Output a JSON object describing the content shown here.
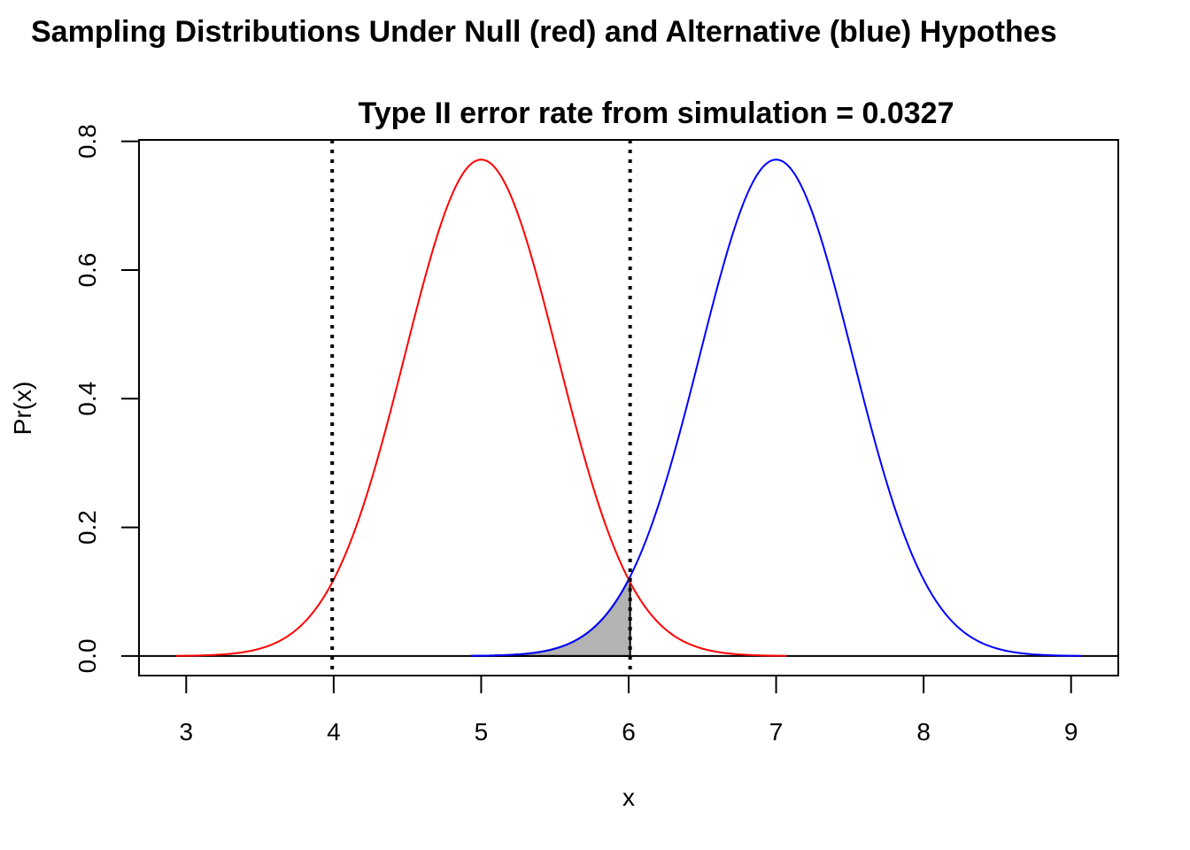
{
  "chart_data": {
    "type": "line",
    "title": "Sampling Distributions Under Null (red) and Alternative (blue) Hypothes",
    "subtitle": "Type II error rate from simulation = 0.0327",
    "xlabel": "x",
    "ylabel": "Pr(x)",
    "xlim": [
      2.68,
      9.32
    ],
    "ylim": [
      -0.0304,
      0.8023
    ],
    "x_ticks": [
      3,
      4,
      5,
      6,
      7,
      8,
      9
    ],
    "x_tick_labels": [
      "3",
      "4",
      "5",
      "6",
      "7",
      "8",
      "9"
    ],
    "y_ticks": [
      0.0,
      0.2,
      0.4,
      0.6,
      0.8
    ],
    "y_tick_labels": [
      "0.0",
      "0.2",
      "0.4",
      "0.6",
      "0.8"
    ],
    "grid": false,
    "legend": "none",
    "series": [
      {
        "color": "#ff0000",
        "distribution": "normal",
        "mean": 5,
        "sd": 0.517,
        "x_range": [
          2.93,
          7.07
        ]
      },
      {
        "color": "#0000ff",
        "distribution": "normal",
        "mean": 7,
        "sd": 0.517,
        "x_range": [
          4.93,
          9.07
        ]
      }
    ],
    "shaded_region": {
      "under_series": 1,
      "from": 4.93,
      "to": 6.01,
      "fill": "#b3b3b3",
      "edge": "#000000"
    },
    "vertical_lines": [
      {
        "x": 3.99,
        "style": "dotted",
        "color": "#000000"
      },
      {
        "x": 6.01,
        "style": "dotted",
        "color": "#000000"
      }
    ],
    "horizontal_lines": [
      {
        "y": 0,
        "style": "solid",
        "color": "#000000"
      }
    ]
  }
}
